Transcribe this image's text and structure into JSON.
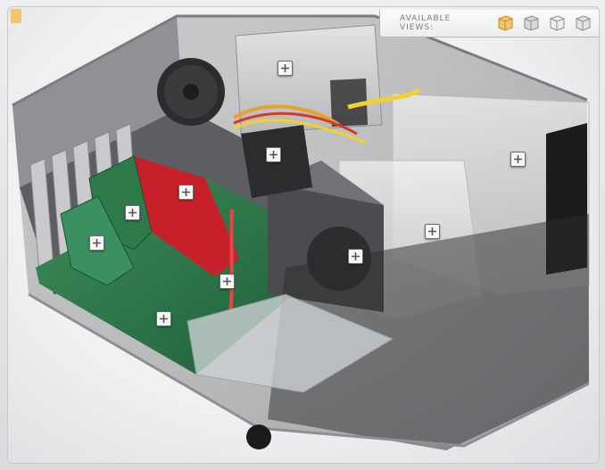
{
  "views_bar": {
    "label": "AVAILABLE VIEWS:",
    "views": [
      {
        "id": "view-1",
        "selected": true
      },
      {
        "id": "view-2",
        "selected": false
      },
      {
        "id": "view-3",
        "selected": false
      },
      {
        "id": "view-4",
        "selected": false
      }
    ]
  },
  "hotspots": [
    {
      "id": "power-supply",
      "icon": "plus-icon"
    },
    {
      "id": "cpu-cooler",
      "icon": "plus-icon"
    },
    {
      "id": "drive-bay",
      "icon": "plus-icon"
    },
    {
      "id": "graphics-card",
      "icon": "plus-icon"
    },
    {
      "id": "expansion-card",
      "icon": "plus-icon"
    },
    {
      "id": "hard-drive-cage",
      "icon": "plus-icon"
    },
    {
      "id": "pci-slots",
      "icon": "plus-icon"
    },
    {
      "id": "hard-drive",
      "icon": "plus-icon"
    },
    {
      "id": "cables",
      "icon": "plus-icon"
    },
    {
      "id": "motherboard",
      "icon": "plus-icon"
    }
  ],
  "colors": {
    "accent": "#e6b548",
    "selected_view": "#f3c56a"
  }
}
